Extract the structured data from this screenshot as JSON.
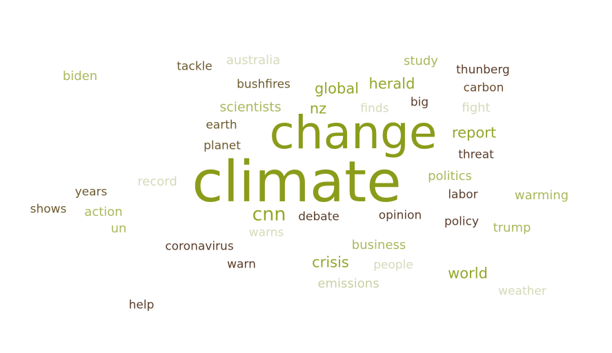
{
  "palette": {
    "olive_dark": "#8a9c1a",
    "olive": "#94a62a",
    "olive_light": "#a9b85c",
    "sage_pale": "#c8cfa4",
    "pale": "#d5d9b8",
    "brown": "#6b4a2e",
    "brown_dark": "#5a3d2b",
    "khaki": "#7a6a3a"
  },
  "words": [
    {
      "text": "climate",
      "color": "#8a9c1a"
    },
    {
      "text": "change",
      "color": "#8a9c1a"
    },
    {
      "text": "cnn",
      "color": "#94a62a"
    },
    {
      "text": "crisis",
      "color": "#94a62a"
    },
    {
      "text": "global",
      "color": "#94a62a"
    },
    {
      "text": "herald",
      "color": "#94a62a"
    },
    {
      "text": "world",
      "color": "#94a62a"
    },
    {
      "text": "nz",
      "color": "#94a62a"
    },
    {
      "text": "report",
      "color": "#94a62a"
    },
    {
      "text": "scientists",
      "color": "#a9b85c"
    },
    {
      "text": "study",
      "color": "#a9b85c"
    },
    {
      "text": "biden",
      "color": "#a9b85c"
    },
    {
      "text": "action",
      "color": "#a9b85c"
    },
    {
      "text": "un",
      "color": "#a9b85c"
    },
    {
      "text": "warming",
      "color": "#a9b85c"
    },
    {
      "text": "politics",
      "color": "#a9b85c"
    },
    {
      "text": "trump",
      "color": "#a9b85c"
    },
    {
      "text": "business",
      "color": "#a9b85c"
    },
    {
      "text": "australia",
      "color": "#d5d9b8"
    },
    {
      "text": "finds",
      "color": "#d5d9b8"
    },
    {
      "text": "fight",
      "color": "#d5d9b8"
    },
    {
      "text": "record",
      "color": "#d5d9b8"
    },
    {
      "text": "warns",
      "color": "#d5d9b8"
    },
    {
      "text": "people",
      "color": "#d5d9b8"
    },
    {
      "text": "emissions",
      "color": "#c8cfa4"
    },
    {
      "text": "weather",
      "color": "#d5d9b8"
    },
    {
      "text": "tackle",
      "color": "#6b5a2e"
    },
    {
      "text": "bushfires",
      "color": "#6b5a2e"
    },
    {
      "text": "earth",
      "color": "#6b5a2e"
    },
    {
      "text": "planet",
      "color": "#6b5a2e"
    },
    {
      "text": "years",
      "color": "#6b5a2e"
    },
    {
      "text": "shows",
      "color": "#6b5a2e"
    },
    {
      "text": "coronavirus",
      "color": "#5a3d2b"
    },
    {
      "text": "warn",
      "color": "#5a3d2b"
    },
    {
      "text": "help",
      "color": "#5a3d2b"
    },
    {
      "text": "debate",
      "color": "#5a3d2b"
    },
    {
      "text": "opinion",
      "color": "#5a3d2b"
    },
    {
      "text": "policy",
      "color": "#5a3d2b"
    },
    {
      "text": "labor",
      "color": "#5a3d2b"
    },
    {
      "text": "threat",
      "color": "#5a3d2b"
    },
    {
      "text": "big",
      "color": "#5a3d2b"
    },
    {
      "text": "carbon",
      "color": "#6b4a2e"
    },
    {
      "text": "thunberg",
      "color": "#5a3d2b"
    }
  ]
}
